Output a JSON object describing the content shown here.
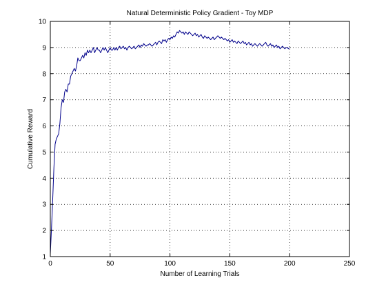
{
  "chart_data": {
    "type": "line",
    "title": "Natural Deterministic Policy Gradient - Toy MDP",
    "xlabel": "Number of Learning Trials",
    "ylabel": "Cumulative Reward",
    "xlim": [
      0,
      250
    ],
    "ylim": [
      1,
      10
    ],
    "xticks": [
      0,
      50,
      100,
      150,
      200,
      250
    ],
    "yticks": [
      1,
      2,
      3,
      4,
      5,
      6,
      7,
      8,
      9,
      10
    ],
    "grid": true,
    "line_color": "#00008b",
    "series": [
      {
        "x": [
          0,
          1,
          2,
          3,
          4,
          5,
          6,
          7,
          8,
          9,
          10,
          11,
          12,
          13,
          14,
          15,
          16,
          17,
          18,
          19,
          20,
          21,
          22,
          23,
          24,
          25,
          26,
          27,
          28,
          29,
          30,
          31,
          32,
          33,
          34,
          35,
          36,
          37,
          38,
          39,
          40,
          41,
          42,
          43,
          44,
          45,
          46,
          47,
          48,
          49,
          50,
          51,
          52,
          53,
          54,
          55,
          56,
          57,
          58,
          59,
          60,
          61,
          62,
          63,
          64,
          65,
          66,
          67,
          68,
          69,
          70,
          71,
          72,
          73,
          74,
          75,
          76,
          77,
          78,
          79,
          80,
          81,
          82,
          83,
          84,
          85,
          86,
          87,
          88,
          89,
          90,
          91,
          92,
          93,
          94,
          95,
          96,
          97,
          98,
          99,
          100,
          101,
          102,
          103,
          104,
          105,
          106,
          107,
          108,
          109,
          110,
          111,
          112,
          113,
          114,
          115,
          116,
          117,
          118,
          119,
          120,
          121,
          122,
          123,
          124,
          125,
          126,
          127,
          128,
          129,
          130,
          131,
          132,
          133,
          134,
          135,
          136,
          137,
          138,
          139,
          140,
          141,
          142,
          143,
          144,
          145,
          146,
          147,
          148,
          149,
          150,
          151,
          152,
          153,
          154,
          155,
          156,
          157,
          158,
          159,
          160,
          161,
          162,
          163,
          164,
          165,
          166,
          167,
          168,
          169,
          170,
          171,
          172,
          173,
          174,
          175,
          176,
          177,
          178,
          179,
          180,
          181,
          182,
          183,
          184,
          185,
          186,
          187,
          188,
          189,
          190,
          191,
          192,
          193,
          194,
          195,
          196,
          197,
          198,
          199,
          200
        ],
        "y": [
          1.1,
          2.1,
          3.2,
          4.4,
          5.3,
          5.5,
          5.6,
          5.7,
          6.1,
          6.7,
          7.0,
          6.9,
          7.3,
          7.4,
          7.3,
          7.6,
          7.6,
          7.9,
          8.0,
          8.1,
          8.2,
          8.1,
          8.3,
          8.6,
          8.5,
          8.5,
          8.6,
          8.7,
          8.6,
          8.8,
          8.7,
          8.9,
          8.8,
          8.9,
          8.8,
          8.9,
          9.0,
          8.8,
          8.9,
          9.0,
          8.9,
          8.9,
          8.8,
          8.9,
          9.0,
          8.9,
          9.0,
          8.9,
          8.8,
          8.9,
          9.0,
          8.9,
          8.9,
          9.0,
          8.9,
          9.0,
          8.9,
          9.0,
          9.05,
          8.95,
          9.0,
          9.05,
          8.95,
          9.0,
          8.9,
          9.0,
          9.05,
          9.0,
          8.95,
          9.0,
          9.05,
          8.95,
          9.0,
          9.05,
          9.1,
          9.0,
          9.1,
          9.05,
          9.15,
          9.1,
          9.05,
          9.1,
          9.1,
          9.15,
          9.1,
          9.05,
          9.1,
          9.15,
          9.2,
          9.1,
          9.2,
          9.25,
          9.2,
          9.15,
          9.3,
          9.25,
          9.3,
          9.2,
          9.3,
          9.35,
          9.3,
          9.4,
          9.35,
          9.45,
          9.4,
          9.5,
          9.6,
          9.55,
          9.65,
          9.6,
          9.55,
          9.6,
          9.5,
          9.6,
          9.55,
          9.5,
          9.6,
          9.55,
          9.5,
          9.45,
          9.5,
          9.55,
          9.45,
          9.5,
          9.4,
          9.45,
          9.5,
          9.4,
          9.35,
          9.45,
          9.4,
          9.35,
          9.4,
          9.35,
          9.3,
          9.35,
          9.4,
          9.3,
          9.35,
          9.4,
          9.45,
          9.4,
          9.35,
          9.4,
          9.35,
          9.3,
          9.35,
          9.3,
          9.25,
          9.3,
          9.2,
          9.25,
          9.3,
          9.2,
          9.25,
          9.2,
          9.15,
          9.25,
          9.2,
          9.15,
          9.2,
          9.25,
          9.15,
          9.2,
          9.1,
          9.15,
          9.2,
          9.1,
          9.15,
          9.05,
          9.1,
          9.15,
          9.1,
          9.05,
          9.1,
          9.15,
          9.1,
          9.05,
          9.1,
          9.15,
          9.2,
          9.1,
          9.05,
          9.1,
          9.15,
          9.05,
          9.1,
          9.0,
          9.05,
          9.1,
          9.0,
          9.05,
          8.95,
          9.0,
          9.05,
          9.0,
          8.95,
          9.0,
          9.0,
          8.95,
          9.0
        ]
      }
    ]
  }
}
